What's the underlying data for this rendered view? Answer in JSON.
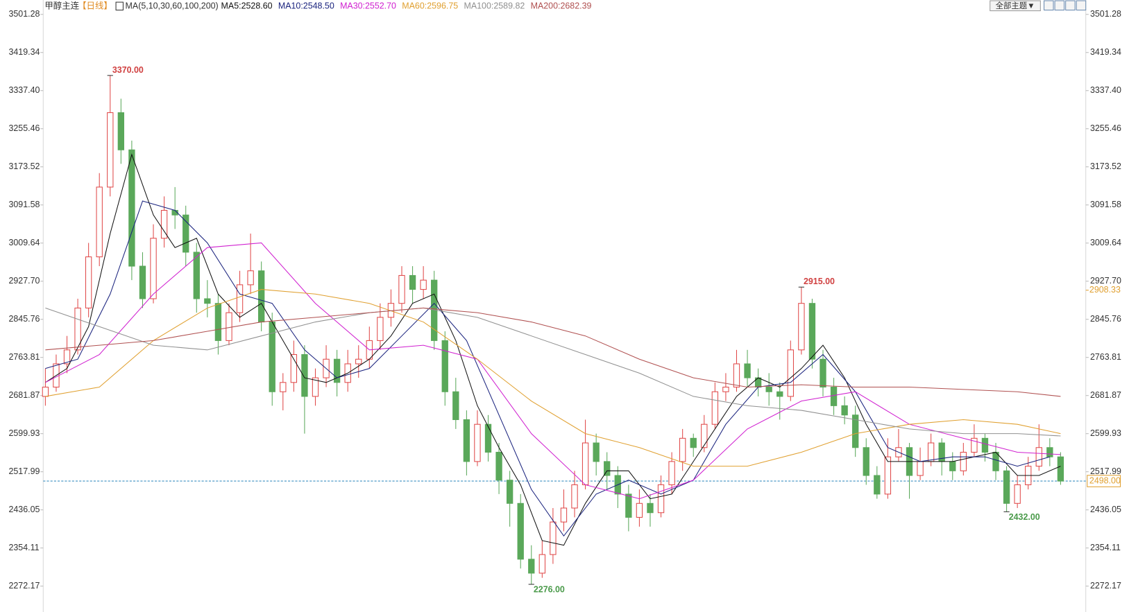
{
  "header": {
    "symbol": "甲醇主连",
    "period": "【日线】",
    "indicator": "MA(5,10,30,60,100,200)",
    "button": "全部主题▼"
  },
  "chart_data": {
    "type": "candlestick",
    "ylim": [
      2216.5,
      3532.2
    ],
    "yticks": [
      {
        "value": 3501.28,
        "label": "3501.28"
      },
      {
        "value": 3419.34,
        "label": "3419.34"
      },
      {
        "value": 3337.4,
        "label": "3337.40"
      },
      {
        "value": 3255.46,
        "label": "3255.46"
      },
      {
        "value": 3173.52,
        "label": "3173.52"
      },
      {
        "value": 3091.58,
        "label": "3091.58"
      },
      {
        "value": 3009.64,
        "label": "3009.64"
      },
      {
        "value": 2927.7,
        "label": "2927.70"
      },
      {
        "value": 2845.76,
        "label": "2845.76"
      },
      {
        "value": 2763.81,
        "label": "2763.81"
      },
      {
        "value": 2681.87,
        "label": "2681.87"
      },
      {
        "value": 2599.93,
        "label": "2599.93"
      },
      {
        "value": 2517.99,
        "label": "2517.99"
      },
      {
        "value": 2436.05,
        "label": "2436.05"
      },
      {
        "value": 2354.11,
        "label": "2354.11"
      },
      {
        "value": 2272.17,
        "label": "2272.17"
      }
    ],
    "up_color": "#e04848",
    "down_color": "#5aa85a",
    "candles": {
      "open": [
        2680,
        2700,
        2750,
        2780,
        2870,
        2980,
        3130,
        3290,
        3210,
        2960,
        2890,
        3020,
        3080,
        3070,
        2990,
        2890,
        2880,
        2800,
        2860,
        2920,
        2950,
        2840,
        2690,
        2710,
        2770,
        2680,
        2720,
        2760,
        2710,
        2750,
        2760,
        2800,
        2850,
        2880,
        2940,
        2910,
        2930,
        2800,
        2690,
        2630,
        2540,
        2620,
        2560,
        2500,
        2450,
        2330,
        2300,
        2340,
        2410,
        2440,
        2490,
        2580,
        2540,
        2510,
        2470,
        2420,
        2450,
        2430,
        2490,
        2540,
        2590,
        2570,
        2620,
        2690,
        2700,
        2750,
        2720,
        2700,
        2690,
        2680,
        2780,
        2880,
        2760,
        2700,
        2660,
        2640,
        2570,
        2510,
        2470,
        2550,
        2570,
        2510,
        2540,
        2580,
        2540,
        2520,
        2560,
        2590,
        2560,
        2520,
        2450,
        2490,
        2530,
        2570,
        2550
      ],
      "high": [
        2740,
        2770,
        2810,
        2890,
        3010,
        3160,
        3370,
        3320,
        3230,
        2990,
        3050,
        3110,
        3130,
        3090,
        3010,
        2930,
        2900,
        2880,
        2950,
        3030,
        2970,
        2860,
        2730,
        2800,
        2790,
        2740,
        2790,
        2780,
        2780,
        2790,
        2830,
        2880,
        2910,
        2960,
        2960,
        2960,
        2950,
        2820,
        2720,
        2650,
        2650,
        2640,
        2580,
        2520,
        2470,
        2360,
        2370,
        2440,
        2480,
        2520,
        2630,
        2600,
        2560,
        2530,
        2490,
        2480,
        2470,
        2510,
        2560,
        2610,
        2600,
        2640,
        2710,
        2730,
        2780,
        2780,
        2740,
        2730,
        2710,
        2800,
        2915,
        2890,
        2780,
        2720,
        2680,
        2660,
        2590,
        2530,
        2590,
        2610,
        2580,
        2570,
        2600,
        2590,
        2560,
        2580,
        2620,
        2600,
        2580,
        2530,
        2510,
        2550,
        2620,
        2590,
        2560
      ],
      "low": [
        2660,
        2690,
        2730,
        2770,
        2850,
        2960,
        3110,
        3180,
        2930,
        2870,
        2880,
        3000,
        3040,
        2960,
        2860,
        2850,
        2770,
        2790,
        2840,
        2900,
        2820,
        2660,
        2650,
        2690,
        2600,
        2660,
        2700,
        2680,
        2690,
        2720,
        2740,
        2780,
        2830,
        2860,
        2880,
        2890,
        2780,
        2660,
        2610,
        2510,
        2530,
        2540,
        2470,
        2400,
        2310,
        2276,
        2290,
        2320,
        2390,
        2420,
        2480,
        2510,
        2480,
        2440,
        2390,
        2400,
        2400,
        2420,
        2470,
        2520,
        2550,
        2560,
        2610,
        2670,
        2690,
        2700,
        2680,
        2660,
        2630,
        2670,
        2770,
        2740,
        2680,
        2640,
        2620,
        2550,
        2490,
        2460,
        2460,
        2540,
        2460,
        2500,
        2530,
        2510,
        2500,
        2510,
        2550,
        2540,
        2500,
        2432,
        2440,
        2480,
        2520,
        2530,
        2490
      ],
      "close": [
        2700,
        2750,
        2780,
        2870,
        2980,
        3130,
        3290,
        3210,
        2960,
        2890,
        3020,
        3080,
        3070,
        2990,
        2890,
        2880,
        2800,
        2860,
        2920,
        2950,
        2840,
        2690,
        2710,
        2770,
        2680,
        2720,
        2760,
        2710,
        2750,
        2760,
        2800,
        2850,
        2880,
        2940,
        2910,
        2930,
        2800,
        2690,
        2630,
        2540,
        2620,
        2560,
        2500,
        2450,
        2330,
        2300,
        2340,
        2410,
        2440,
        2490,
        2580,
        2540,
        2510,
        2470,
        2420,
        2450,
        2430,
        2490,
        2540,
        2590,
        2570,
        2620,
        2690,
        2700,
        2750,
        2720,
        2700,
        2690,
        2680,
        2780,
        2880,
        2760,
        2700,
        2660,
        2640,
        2570,
        2510,
        2470,
        2550,
        2570,
        2510,
        2540,
        2580,
        2540,
        2520,
        2560,
        2590,
        2560,
        2520,
        2450,
        2490,
        2530,
        2570,
        2550,
        2498
      ]
    },
    "series": [
      {
        "name": "MA5:2528.60",
        "color": "#111111",
        "x": [
          0,
          2,
          4,
          6,
          8,
          10,
          12,
          14,
          16,
          18,
          20,
          22,
          24,
          26,
          28,
          30,
          32,
          34,
          36,
          38,
          40,
          42,
          44,
          46,
          48,
          50,
          52,
          54,
          56,
          58,
          60,
          62,
          64,
          66,
          68,
          70,
          72,
          74,
          76,
          78,
          80,
          82,
          84,
          86,
          88,
          90,
          92,
          94
        ],
        "values": [
          2710,
          2740,
          2830,
          3030,
          3200,
          3070,
          3000,
          3020,
          2900,
          2850,
          2880,
          2800,
          2720,
          2710,
          2730,
          2760,
          2810,
          2880,
          2900,
          2800,
          2660,
          2570,
          2490,
          2370,
          2360,
          2450,
          2520,
          2520,
          2460,
          2470,
          2540,
          2610,
          2680,
          2720,
          2700,
          2740,
          2790,
          2720,
          2620,
          2540,
          2540,
          2540,
          2540,
          2550,
          2560,
          2510,
          2510,
          2530
        ]
      },
      {
        "name": "MA10:2548.50",
        "color": "#1a237e",
        "x": [
          0,
          3,
          6,
          9,
          12,
          15,
          18,
          21,
          24,
          27,
          30,
          33,
          36,
          39,
          42,
          45,
          48,
          51,
          54,
          57,
          60,
          63,
          66,
          69,
          72,
          75,
          78,
          81,
          84,
          87,
          90,
          93
        ],
        "values": [
          2740,
          2760,
          2900,
          3100,
          3080,
          3010,
          2900,
          2880,
          2780,
          2720,
          2740,
          2810,
          2880,
          2800,
          2640,
          2480,
          2380,
          2470,
          2500,
          2470,
          2500,
          2620,
          2700,
          2710,
          2770,
          2690,
          2570,
          2540,
          2550,
          2550,
          2530,
          2550
        ]
      },
      {
        "name": "MA30:2552.70",
        "color": "#d020d0",
        "x": [
          0,
          5,
          10,
          15,
          20,
          25,
          30,
          35,
          40,
          45,
          50,
          55,
          60,
          65,
          70,
          75,
          80,
          85,
          90,
          94
        ],
        "values": [
          2710,
          2770,
          2900,
          3000,
          3010,
          2880,
          2780,
          2790,
          2760,
          2600,
          2490,
          2460,
          2500,
          2610,
          2670,
          2690,
          2620,
          2590,
          2560,
          2555
        ]
      },
      {
        "name": "MA60:2596.75",
        "color": "#e0a030",
        "x": [
          0,
          5,
          10,
          15,
          20,
          25,
          30,
          35,
          40,
          45,
          50,
          55,
          60,
          65,
          70,
          75,
          80,
          85,
          90,
          94
        ],
        "values": [
          2680,
          2700,
          2800,
          2870,
          2910,
          2900,
          2880,
          2840,
          2760,
          2670,
          2600,
          2570,
          2530,
          2530,
          2560,
          2600,
          2620,
          2630,
          2620,
          2600
        ]
      },
      {
        "name": "MA100:2589.82",
        "color": "#909090",
        "x": [
          0,
          5,
          10,
          15,
          20,
          25,
          30,
          35,
          40,
          45,
          50,
          55,
          60,
          65,
          70,
          75,
          80,
          85,
          90,
          94
        ],
        "values": [
          2870,
          2830,
          2790,
          2780,
          2810,
          2840,
          2860,
          2870,
          2850,
          2810,
          2770,
          2730,
          2680,
          2660,
          2650,
          2630,
          2610,
          2600,
          2600,
          2595
        ]
      },
      {
        "name": "MA200:2682.39",
        "color": "#b05050",
        "x": [
          0,
          5,
          10,
          15,
          20,
          25,
          30,
          35,
          40,
          45,
          50,
          55,
          60,
          65,
          70,
          75,
          80,
          85,
          90,
          94
        ],
        "values": [
          2780,
          2790,
          2800,
          2820,
          2840,
          2850,
          2860,
          2870,
          2860,
          2840,
          2810,
          2760,
          2720,
          2700,
          2705,
          2700,
          2700,
          2695,
          2690,
          2680
        ]
      }
    ],
    "annotations": [
      {
        "x": 6,
        "value": 3370,
        "label": "3370.00",
        "color": "#d04040"
      },
      {
        "x": 45,
        "value": 2276,
        "label": "2276.00",
        "color": "#4a9a4a"
      },
      {
        "x": 70,
        "value": 2915,
        "label": "2915.00",
        "color": "#d04040"
      },
      {
        "x": 89,
        "value": 2432,
        "label": "2432.00",
        "color": "#4a9a4a"
      }
    ],
    "price_line": {
      "value": 2498,
      "label": "2498.00",
      "color": "#e0a030"
    },
    "marker": {
      "value": 2908.33,
      "label": "2908.33",
      "color": "#e0a030"
    }
  }
}
